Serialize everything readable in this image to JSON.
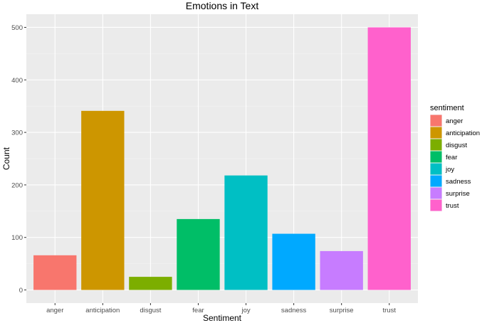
{
  "chart_data": {
    "type": "bar",
    "title": "Emotions in Text",
    "xlabel": "Sentiment",
    "ylabel": "Count",
    "categories": [
      "anger",
      "anticipation",
      "disgust",
      "fear",
      "joy",
      "sadness",
      "surprise",
      "trust"
    ],
    "values": [
      66,
      341,
      25,
      135,
      218,
      107,
      74,
      500
    ],
    "colors": [
      "#F8766D",
      "#CD9600",
      "#7CAE00",
      "#00BE67",
      "#00BFC4",
      "#00A9FF",
      "#C77CFF",
      "#FF61CC"
    ],
    "yticks": [
      0,
      100,
      200,
      300,
      400,
      500
    ],
    "ylim": [
      -25,
      525
    ],
    "grid": true,
    "legend": {
      "title": "sentiment",
      "position": "right",
      "entries": [
        "anger",
        "anticipation",
        "disgust",
        "fear",
        "joy",
        "sadness",
        "surprise",
        "trust"
      ]
    }
  }
}
